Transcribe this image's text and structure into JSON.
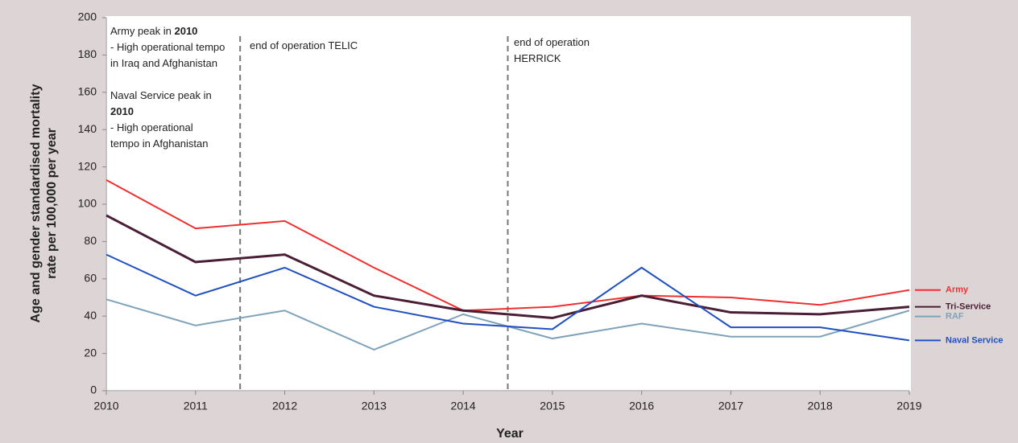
{
  "chart_data": {
    "type": "line",
    "xlabel": "Year",
    "ylabel": [
      "Age and gender standardised mortality",
      "rate per 100,000 per year"
    ],
    "x": [
      2010,
      2011,
      2012,
      2013,
      2014,
      2015,
      2016,
      2017,
      2018,
      2019
    ],
    "xlim": [
      2010,
      2019
    ],
    "xticks": [
      2010,
      2011,
      2012,
      2013,
      2014,
      2015,
      2016,
      2017,
      2018,
      2019
    ],
    "ylim": [
      0,
      200
    ],
    "yticks": [
      0,
      20,
      40,
      60,
      80,
      100,
      120,
      140,
      160,
      180,
      200
    ],
    "grid": false,
    "legend": "right",
    "series": [
      {
        "name": "Army",
        "color": "#f03030",
        "values": [
          113,
          87,
          91,
          66,
          43,
          45,
          51,
          50,
          46,
          54
        ]
      },
      {
        "name": "Tri-Service",
        "color": "#4a1f35",
        "values": [
          94,
          69,
          73,
          51,
          43,
          39,
          51,
          42,
          41,
          45
        ]
      },
      {
        "name": "RAF",
        "color": "#7fa2bb",
        "values": [
          49,
          35,
          43,
          22,
          41,
          28,
          36,
          29,
          29,
          43
        ]
      },
      {
        "name": "Naval Service",
        "color": "#2050c0",
        "values": [
          73,
          51,
          66,
          45,
          36,
          33,
          66,
          34,
          34,
          27
        ]
      }
    ],
    "reference_lines": [
      {
        "x": 2011.5
      },
      {
        "x": 2014.5
      }
    ],
    "annotations": [
      {
        "lines": [
          [
            {
              "text": "Army peak in "
            },
            {
              "text": "2010",
              "bold": true
            }
          ],
          [
            {
              "text": "- High operational tempo"
            }
          ],
          [
            {
              "text": "in Iraq and Afghanistan"
            }
          ]
        ]
      },
      {
        "lines": [
          [
            {
              "text": "Naval Service peak in"
            }
          ],
          [
            {
              "text": "2010",
              "bold": true
            }
          ],
          [
            {
              "text": "- High operational"
            }
          ],
          [
            {
              "text": "tempo in Afghanistan"
            }
          ]
        ]
      },
      {
        "lines": [
          [
            {
              "text": "end of operation TELIC"
            }
          ]
        ]
      },
      {
        "lines": [
          [
            {
              "text": "end of operation"
            }
          ],
          [
            {
              "text": "HERRICK"
            }
          ]
        ]
      }
    ]
  }
}
